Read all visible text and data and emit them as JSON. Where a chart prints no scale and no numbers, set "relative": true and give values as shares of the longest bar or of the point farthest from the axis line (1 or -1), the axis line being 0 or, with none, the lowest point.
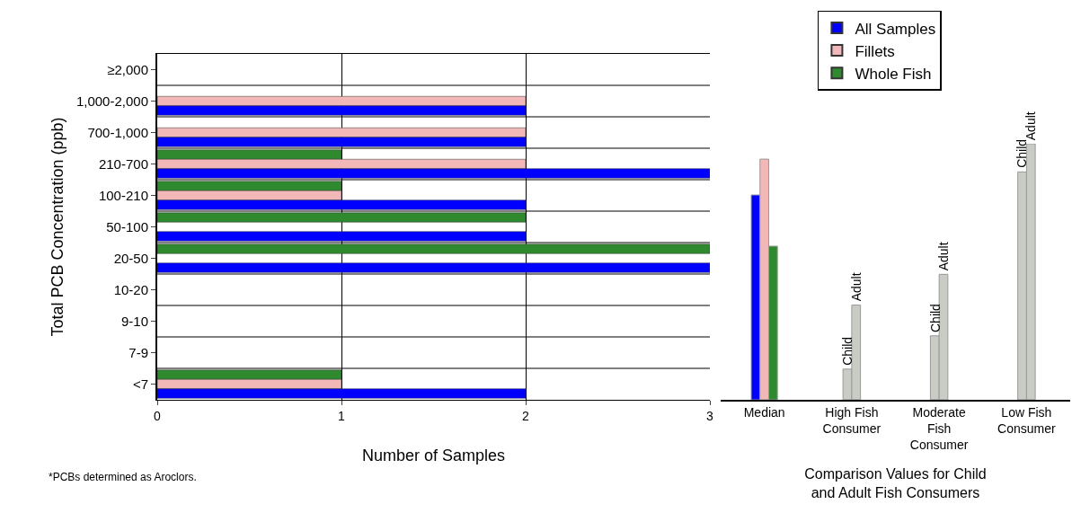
{
  "chart_data": [
    {
      "type": "bar",
      "orientation": "horizontal",
      "xlabel": "Number of Samples",
      "ylabel": "Total PCB Concentration (ppb)",
      "categories": [
        "≥2,000",
        "1,000-2,000",
        "700-1,000",
        "210-700",
        "100-210",
        "50-100",
        "20-50",
        "10-20",
        "9-10",
        "7-9",
        "<7"
      ],
      "series": [
        {
          "name": "Whole Fish",
          "color": "#2f8a2f",
          "values": [
            null,
            null,
            null,
            1,
            1,
            2,
            3,
            null,
            null,
            null,
            1
          ]
        },
        {
          "name": "Fillets",
          "color": "#f2b8b8",
          "values": [
            null,
            2,
            2,
            2,
            1,
            null,
            null,
            null,
            null,
            null,
            1
          ]
        },
        {
          "name": "All Samples",
          "color": "#0000ff",
          "values": [
            null,
            2,
            2,
            3,
            2,
            2,
            3,
            null,
            null,
            null,
            2
          ]
        }
      ],
      "xlim": [
        0,
        3
      ],
      "xticks": [
        0,
        1,
        2,
        3
      ],
      "grid": true,
      "legend": "top right",
      "annotations": [
        "*PCBs determined as Aroclors."
      ]
    },
    {
      "type": "bar",
      "relative": true,
      "xlabel": "Comparison Values for Child and Adult Fish Consumers",
      "categories": [
        "Median",
        "High Fish Consumer",
        "Moderate Fish Consumer",
        "Low Fish Consumer"
      ],
      "series": [
        {
          "color": "#0000ff",
          "values": [
            0.8,
            null,
            null,
            null
          ]
        },
        {
          "color": "#f2b8b8",
          "values": [
            0.94,
            null,
            null,
            null
          ]
        },
        {
          "color": "#2f8a2f",
          "values": [
            0.6,
            null,
            null,
            null
          ]
        },
        {
          "name": "Child",
          "color": "#c8ccc4",
          "values": [
            null,
            0.12,
            0.25,
            0.89
          ]
        },
        {
          "name": "Adult",
          "color": "#c8ccc4",
          "values": [
            null,
            0.37,
            0.49,
            1
          ]
        }
      ],
      "grid": false
    }
  ]
}
